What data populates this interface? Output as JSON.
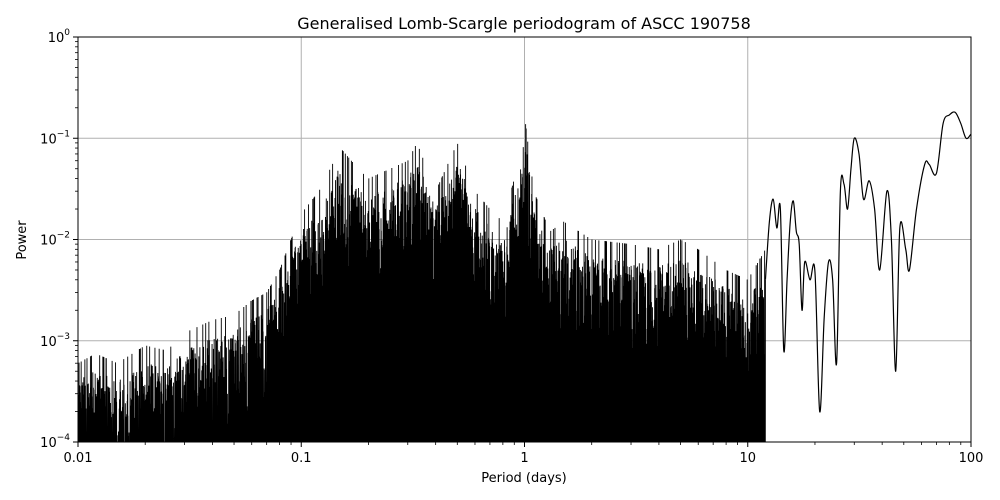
{
  "chart_data": {
    "type": "line",
    "title": "Generalised Lomb-Scargle periodogram of ASCC 190758",
    "xlabel": "Period (days)",
    "ylabel": "Power",
    "x_scale": "log",
    "y_scale": "log",
    "xlim": [
      0.01,
      100
    ],
    "ylim": [
      0.0001,
      1
    ],
    "grid": true,
    "line_color": "#000000",
    "grid_color": "#b0b0b0",
    "x_ticks": [
      {
        "value": 0.01,
        "label": "0.01"
      },
      {
        "value": 0.1,
        "label": "0.1"
      },
      {
        "value": 1,
        "label": "1"
      },
      {
        "value": 10,
        "label": "10"
      },
      {
        "value": 100,
        "label": "100"
      }
    ],
    "y_ticks": [
      {
        "value": 0.0001,
        "base": "10",
        "exp": "−4"
      },
      {
        "value": 0.001,
        "base": "10",
        "exp": "−3"
      },
      {
        "value": 0.01,
        "base": "10",
        "exp": "−2"
      },
      {
        "value": 0.1,
        "base": "10",
        "exp": "−1"
      },
      {
        "value": 1,
        "base": "10",
        "exp": "0"
      }
    ],
    "series": [
      {
        "envelope_peaks": [
          [
            0.01,
            0.0006
          ],
          [
            0.012,
            0.00075
          ],
          [
            0.015,
            0.0006
          ],
          [
            0.02,
            0.0009
          ],
          [
            0.025,
            0.0008
          ],
          [
            0.03,
            0.0012
          ],
          [
            0.04,
            0.0016
          ],
          [
            0.05,
            0.0018
          ],
          [
            0.06,
            0.0025
          ],
          [
            0.07,
            0.003
          ],
          [
            0.08,
            0.005
          ],
          [
            0.09,
            0.01
          ],
          [
            0.1,
            0.018
          ],
          [
            0.12,
            0.03
          ],
          [
            0.15,
            0.08
          ],
          [
            0.18,
            0.05
          ],
          [
            0.2,
            0.04
          ],
          [
            0.25,
            0.05
          ],
          [
            0.3,
            0.06
          ],
          [
            0.33,
            0.09
          ],
          [
            0.4,
            0.03
          ],
          [
            0.5,
            0.09
          ],
          [
            0.6,
            0.03
          ],
          [
            0.7,
            0.02
          ],
          [
            0.8,
            0.015
          ],
          [
            0.9,
            0.04
          ],
          [
            1.0,
            0.17
          ],
          [
            1.1,
            0.03
          ],
          [
            1.3,
            0.012
          ],
          [
            1.5,
            0.015
          ],
          [
            2.0,
            0.01
          ],
          [
            3.0,
            0.009
          ],
          [
            4.0,
            0.008
          ],
          [
            5.0,
            0.01
          ],
          [
            6.0,
            0.008
          ],
          [
            8.0,
            0.005
          ],
          [
            10.0,
            0.004
          ],
          [
            12.0,
            0.008
          ]
        ],
        "smooth_curve": [
          [
            12.0,
            0.004
          ],
          [
            12.5,
            0.015
          ],
          [
            13.0,
            0.025
          ],
          [
            13.5,
            0.013
          ],
          [
            14.0,
            0.02
          ],
          [
            14.5,
            0.0008
          ],
          [
            15.0,
            0.004
          ],
          [
            15.5,
            0.015
          ],
          [
            16.0,
            0.024
          ],
          [
            16.5,
            0.012
          ],
          [
            17.0,
            0.009
          ],
          [
            17.5,
            0.002
          ],
          [
            18.0,
            0.006
          ],
          [
            19.0,
            0.004
          ],
          [
            20.0,
            0.0048
          ],
          [
            21.0,
            0.0002
          ],
          [
            22.0,
            0.0017
          ],
          [
            23.0,
            0.006
          ],
          [
            24.0,
            0.004
          ],
          [
            25.0,
            0.0006
          ],
          [
            26.0,
            0.03
          ],
          [
            27.0,
            0.035
          ],
          [
            28.0,
            0.02
          ],
          [
            29.0,
            0.05
          ],
          [
            30.0,
            0.1
          ],
          [
            31.5,
            0.07
          ],
          [
            33.0,
            0.025
          ],
          [
            35.0,
            0.038
          ],
          [
            37.0,
            0.02
          ],
          [
            39.0,
            0.005
          ],
          [
            42.0,
            0.03
          ],
          [
            44.0,
            0.01
          ],
          [
            46.0,
            0.0005
          ],
          [
            48.0,
            0.013
          ],
          [
            51.0,
            0.008
          ],
          [
            53.0,
            0.005
          ],
          [
            57.0,
            0.02
          ],
          [
            62.0,
            0.055
          ],
          [
            65.0,
            0.055
          ],
          [
            70.0,
            0.045
          ],
          [
            75.0,
            0.14
          ],
          [
            80.0,
            0.17
          ],
          [
            85.0,
            0.18
          ],
          [
            90.0,
            0.14
          ],
          [
            95.0,
            0.1
          ],
          [
            100.0,
            0.11
          ]
        ]
      }
    ]
  }
}
